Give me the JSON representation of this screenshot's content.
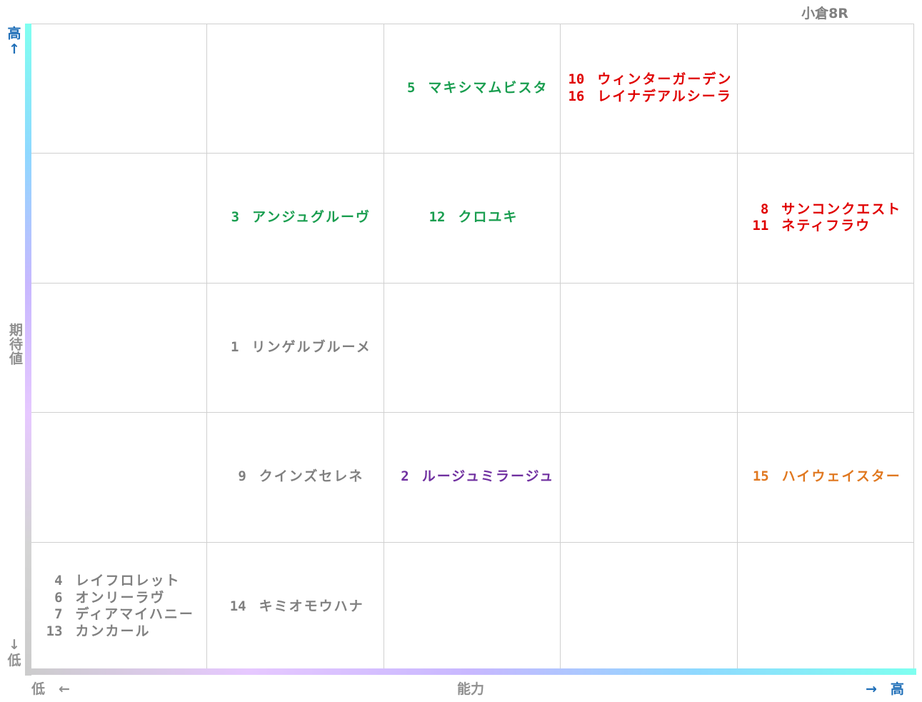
{
  "title": "小倉8R",
  "axes": {
    "y_title": "期待値",
    "y_high": "高↑",
    "y_low": "↓低",
    "x_title": "能力",
    "x_low": "低　←",
    "x_high": "→　高"
  },
  "colors": {
    "grid": "#d0d0d0",
    "gray": "#808080",
    "green": "#1a9e50",
    "red": "#e00000",
    "purple": "#7030a0",
    "orange": "#e07820",
    "axis_label_blue": "#1f6fb8",
    "axis_gradient_y": [
      "#7ffff0",
      "#8fd8ff",
      "#c8b8ff",
      "#e6c8ff",
      "#d4d4d4",
      "#cccccc"
    ],
    "axis_gradient_x": [
      "#cccccc",
      "#e6c8ff",
      "#c8b8ff",
      "#8fd8ff",
      "#7ffff0"
    ]
  },
  "chart_data": {
    "type": "table",
    "title": "小倉8R",
    "xlabel": "能力",
    "ylabel": "期待値",
    "grid": true,
    "columns": 5,
    "rows": 5,
    "cells": [
      {
        "row": 0,
        "col": 2,
        "color": "green",
        "entries": [
          {
            "num": "5",
            "name": "マキシマムビスタ"
          }
        ]
      },
      {
        "row": 0,
        "col": 3,
        "color": "red",
        "entries": [
          {
            "num": "10",
            "name": "ウィンターガーデン"
          },
          {
            "num": "16",
            "name": "レイナデアルシーラ"
          }
        ]
      },
      {
        "row": 1,
        "col": 1,
        "color": "green",
        "entries": [
          {
            "num": "3",
            "name": "アンジュグルーヴ"
          }
        ]
      },
      {
        "row": 1,
        "col": 2,
        "color": "green",
        "entries": [
          {
            "num": "12",
            "name": "クロユキ"
          }
        ]
      },
      {
        "row": 1,
        "col": 4,
        "color": "red",
        "entries": [
          {
            "num": "8",
            "name": "サンコンクエスト"
          },
          {
            "num": "11",
            "name": "ネティフラウ"
          }
        ]
      },
      {
        "row": 2,
        "col": 1,
        "color": "gray",
        "entries": [
          {
            "num": "1",
            "name": "リンゲルブルーメ"
          }
        ]
      },
      {
        "row": 3,
        "col": 1,
        "color": "gray",
        "entries": [
          {
            "num": "9",
            "name": "クインズセレネ"
          }
        ]
      },
      {
        "row": 3,
        "col": 2,
        "color": "purple",
        "entries": [
          {
            "num": "2",
            "name": "ルージュミラージュ"
          }
        ]
      },
      {
        "row": 3,
        "col": 4,
        "color": "orange",
        "entries": [
          {
            "num": "15",
            "name": "ハイウェイスター"
          }
        ]
      },
      {
        "row": 4,
        "col": 0,
        "color": "gray",
        "entries": [
          {
            "num": "4",
            "name": "レイフロレット"
          },
          {
            "num": "6",
            "name": "オンリーラヴ"
          },
          {
            "num": "7",
            "name": "ディアマイハニー"
          },
          {
            "num": "13",
            "name": "カンカール"
          }
        ]
      },
      {
        "row": 4,
        "col": 1,
        "color": "gray",
        "entries": [
          {
            "num": "14",
            "name": "キミオモウハナ"
          }
        ]
      }
    ]
  }
}
